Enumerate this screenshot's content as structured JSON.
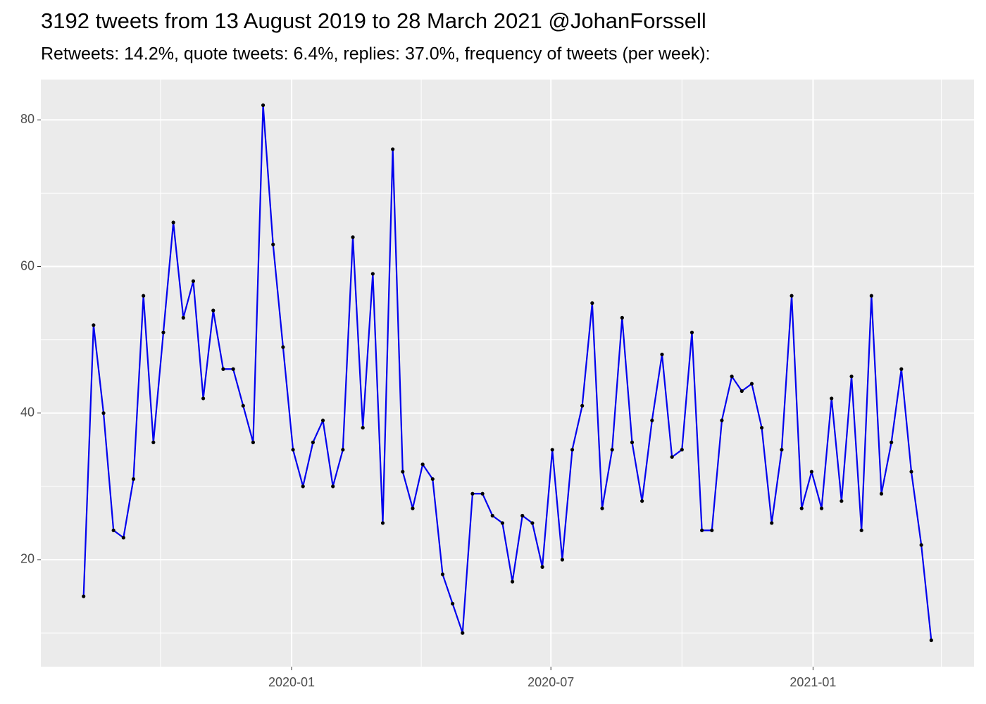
{
  "chart_data": {
    "type": "line",
    "title": "3192 tweets from 13 August 2019 to 28 March 2021 @JohanForssell",
    "subtitle": "Retweets: 14.2%, quote tweets: 6.4%, replies: 37.0%, frequency of tweets (per week):",
    "x": [
      "2019-08-08",
      "2019-08-15",
      "2019-08-22",
      "2019-08-29",
      "2019-09-05",
      "2019-09-12",
      "2019-09-19",
      "2019-09-26",
      "2019-10-03",
      "2019-10-10",
      "2019-10-17",
      "2019-10-24",
      "2019-10-31",
      "2019-11-07",
      "2019-11-14",
      "2019-11-21",
      "2019-11-28",
      "2019-12-05",
      "2019-12-12",
      "2019-12-19",
      "2019-12-26",
      "2020-01-02",
      "2020-01-09",
      "2020-01-16",
      "2020-01-23",
      "2020-01-30",
      "2020-02-06",
      "2020-02-13",
      "2020-02-20",
      "2020-02-27",
      "2020-03-05",
      "2020-03-12",
      "2020-03-19",
      "2020-03-26",
      "2020-04-02",
      "2020-04-09",
      "2020-04-16",
      "2020-04-23",
      "2020-04-30",
      "2020-05-07",
      "2020-05-14",
      "2020-05-21",
      "2020-05-28",
      "2020-06-04",
      "2020-06-11",
      "2020-06-18",
      "2020-06-25",
      "2020-07-02",
      "2020-07-09",
      "2020-07-16",
      "2020-07-23",
      "2020-07-30",
      "2020-08-06",
      "2020-08-13",
      "2020-08-20",
      "2020-08-27",
      "2020-09-03",
      "2020-09-10",
      "2020-09-17",
      "2020-09-24",
      "2020-10-01",
      "2020-10-08",
      "2020-10-15",
      "2020-10-22",
      "2020-10-29",
      "2020-11-05",
      "2020-11-12",
      "2020-11-19",
      "2020-11-26",
      "2020-12-03",
      "2020-12-10",
      "2020-12-17",
      "2020-12-24",
      "2020-12-31",
      "2021-01-07",
      "2021-01-14",
      "2021-01-21",
      "2021-01-28",
      "2021-02-04",
      "2021-02-11",
      "2021-02-18",
      "2021-02-25",
      "2021-03-04",
      "2021-03-11",
      "2021-03-18",
      "2021-03-25"
    ],
    "series": [
      {
        "color": "#0000ee",
        "point_color": "#000000",
        "values": [
          15,
          52,
          40,
          24,
          23,
          31,
          56,
          36,
          51,
          66,
          53,
          58,
          42,
          54,
          46,
          46,
          41,
          36,
          82,
          63,
          49,
          35,
          30,
          36,
          39,
          30,
          35,
          64,
          38,
          59,
          25,
          76,
          32,
          27,
          33,
          31,
          18,
          14,
          10,
          29,
          29,
          26,
          25,
          17,
          26,
          25,
          19,
          35,
          20,
          35,
          41,
          55,
          27,
          35,
          53,
          36,
          28,
          39,
          48,
          34,
          35,
          51,
          24,
          24,
          39,
          45,
          43,
          44,
          38,
          25,
          35,
          56,
          27,
          32,
          27,
          42,
          28,
          45,
          24,
          56,
          29,
          36,
          46,
          32,
          22,
          9
        ]
      }
    ],
    "xlim": [
      "2019-07-09",
      "2021-04-24"
    ],
    "xticks": [
      {
        "value": "2020-01-01",
        "label": "2020-01"
      },
      {
        "value": "2020-07-01",
        "label": "2020-07"
      },
      {
        "value": "2021-01-01",
        "label": "2021-01"
      }
    ],
    "xminorticks": [
      "2019-10-01",
      "2020-04-01",
      "2020-10-01",
      "2021-04-01"
    ],
    "ylim": [
      5.4,
      85.5
    ],
    "yticks": [
      20,
      40,
      60,
      80
    ],
    "yminorticks": [
      10,
      30,
      50,
      70
    ],
    "grid": true
  }
}
